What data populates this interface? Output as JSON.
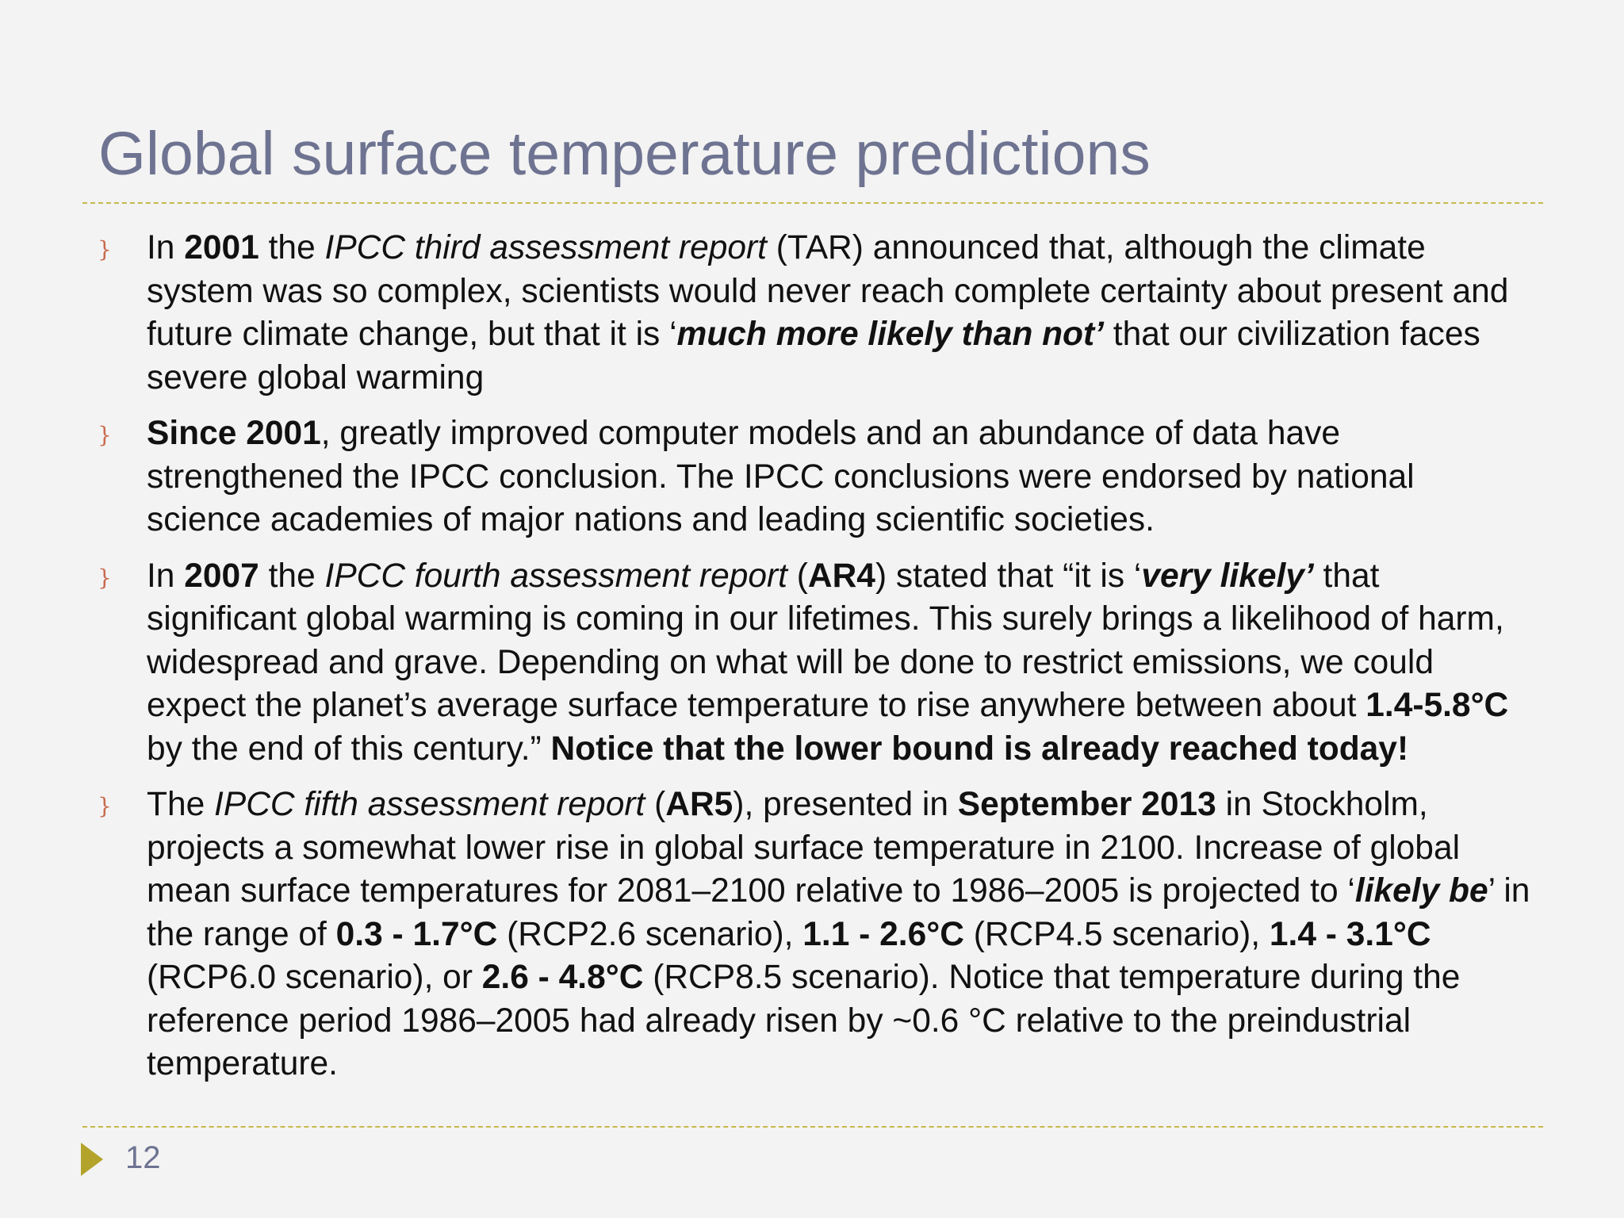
{
  "title": "Global surface temperature predictions",
  "bullet_glyph": "}",
  "page_number": "12",
  "colors": {
    "title": "#6e7391",
    "rule": "#c7b84a",
    "bullet": "#c86b4e",
    "arrow": "#b3a32a"
  },
  "bullets": [
    {
      "t0": "In ",
      "b1": "2001",
      "t2": " the ",
      "i3": "IPCC third assessment report",
      "t4": " (TAR) announced that, although the climate system was so complex, scientists would never reach complete certainty about present and future climate change, but that it is ‘",
      "bi5": "much more likely than not’",
      "t6": " that our civilization faces severe global warming"
    },
    {
      "b0": "Since 2001",
      "t1": ",  greatly improved computer models and an abundance of data have strengthened the IPCC conclusion. The IPCC conclusions were endorsed by national science academies of major nations and leading scientific societies."
    },
    {
      "t0": "In ",
      "b1": "2007",
      "t2": " the ",
      "i3": "IPCC fourth assessment report",
      "t4": "  (",
      "b5": "AR4",
      "t6": ") stated that “it is ‘",
      "bi7": "very likely’",
      "t8": " that significant global warming is coming in our lifetimes. This surely brings a likelihood of harm, widespread and grave. Depending on what will be done to restrict emissions, we could expect the planet’s average surface temperature to rise anywhere between about ",
      "b9": "1.4-5.8°C",
      "t10": " by the end of this century.” ",
      "b11": "Notice that the lower bound is already reached today!"
    },
    {
      "t0": "The ",
      "i1": "IPCC fifth assessment report",
      "t2": " (",
      "b3": "AR5",
      "t4": "),  presented in ",
      "b5": "September 2013",
      "t6": " in Stockholm,  projects a somewhat lower rise in global surface temperature in 2100. Increase of global mean surface temperatures for 2081–2100 relative to 1986–2005 is projected to ‘",
      "bi7": "likely be",
      "t8": "’ in the range of ",
      "b9": "0.3 - 1.7°C",
      "t10": " (RCP2.6 scenario), ",
      "b11": "1.1 - 2.6°C",
      "t12": " (RCP4.5 scenario), ",
      "b13": "1.4 - 3.1°C",
      "t14": " (RCP6.0 scenario), or ",
      "b15": "2.6 - 4.8°C",
      "t16": " (RCP8.5 scenario). Notice that temperature during the reference period 1986–2005 had already risen by ~0.6 °C relative to the preindustrial temperature."
    }
  ]
}
